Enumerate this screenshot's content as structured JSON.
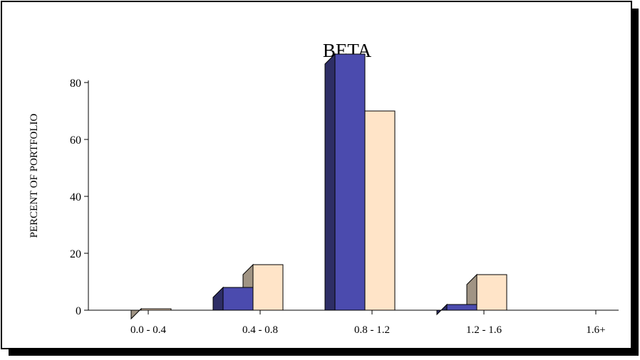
{
  "chart_data": {
    "type": "bar",
    "title": "BETA",
    "xlabel": "",
    "ylabel": "PERCENT OF PORTFOLIO",
    "ylim": [
      0,
      90
    ],
    "yticks": [
      0,
      20,
      40,
      60,
      80
    ],
    "categories": [
      "0.0 - 0.4",
      "0.4 - 0.8",
      "0.8 - 1.2",
      "1.2 - 1.6",
      "1.6+"
    ],
    "series": [
      {
        "values": [
          0,
          8,
          90,
          2,
          0
        ]
      },
      {
        "values": [
          0.5,
          16,
          70,
          12.5,
          0
        ]
      }
    ],
    "colors": {
      "series_front": [
        "#4b4bae",
        "#ffe4c8"
      ],
      "series_side": [
        "#2e2e66",
        "#a09484"
      ],
      "outline": "#000000",
      "frame_shadow": "#000000"
    },
    "grid": false,
    "legend": "none",
    "style": "3d-bar"
  }
}
